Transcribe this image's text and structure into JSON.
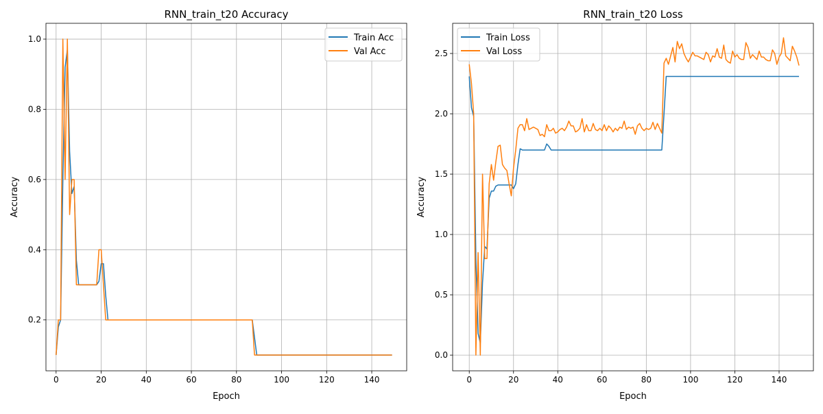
{
  "chart_data": [
    {
      "type": "line",
      "title": "RNN_train_t20 Accuracy",
      "xlabel": "Epoch",
      "ylabel": "Accuracy",
      "xlim": [
        -4.5,
        155.5
      ],
      "ylim": [
        0.055,
        1.045
      ],
      "xticks": [
        0,
        20,
        40,
        60,
        80,
        100,
        120,
        140
      ],
      "yticks": [
        0.2,
        0.4,
        0.6,
        0.8,
        1.0
      ],
      "xtick_labels": [
        "0",
        "20",
        "40",
        "60",
        "80",
        "100",
        "120",
        "140"
      ],
      "ytick_labels": [
        "0.2",
        "0.4",
        "0.6",
        "0.8",
        "1.0"
      ],
      "grid": true,
      "legend_position": "top-right",
      "series": [
        {
          "name": "Train Acc",
          "color": "#1f77b4",
          "points": [
            [
              0,
              0.1
            ],
            [
              1,
              0.18
            ],
            [
              2,
              0.2
            ],
            [
              3,
              0.6
            ],
            [
              4,
              0.92
            ],
            [
              5,
              0.97
            ],
            [
              6,
              0.68
            ],
            [
              7,
              0.56
            ],
            [
              8,
              0.58
            ],
            [
              9,
              0.37
            ],
            [
              10,
              0.3
            ],
            [
              11,
              0.3
            ],
            [
              12,
              0.3
            ],
            [
              13,
              0.3
            ],
            [
              14,
              0.3
            ],
            [
              15,
              0.3
            ],
            [
              16,
              0.3
            ],
            [
              17,
              0.3
            ],
            [
              18,
              0.3
            ],
            [
              19,
              0.31
            ],
            [
              20,
              0.36
            ],
            [
              21,
              0.36
            ],
            [
              22,
              0.27
            ],
            [
              23,
              0.2
            ],
            [
              30,
              0.2
            ],
            [
              40,
              0.2
            ],
            [
              50,
              0.2
            ],
            [
              60,
              0.2
            ],
            [
              70,
              0.2
            ],
            [
              80,
              0.2
            ],
            [
              86,
              0.2
            ],
            [
              87,
              0.2
            ],
            [
              88,
              0.15
            ],
            [
              89,
              0.1
            ],
            [
              100,
              0.1
            ],
            [
              120,
              0.1
            ],
            [
              140,
              0.1
            ],
            [
              149,
              0.1
            ]
          ]
        },
        {
          "name": "Val Acc",
          "color": "#ff7f0e",
          "points": [
            [
              0,
              0.1
            ],
            [
              1,
              0.2
            ],
            [
              2,
              0.2
            ],
            [
              3,
              1.0
            ],
            [
              4,
              0.6
            ],
            [
              5,
              1.0
            ],
            [
              6,
              0.5
            ],
            [
              7,
              0.6
            ],
            [
              8,
              0.6
            ],
            [
              9,
              0.3
            ],
            [
              10,
              0.3
            ],
            [
              11,
              0.3
            ],
            [
              12,
              0.3
            ],
            [
              13,
              0.3
            ],
            [
              14,
              0.3
            ],
            [
              15,
              0.3
            ],
            [
              16,
              0.3
            ],
            [
              17,
              0.3
            ],
            [
              18,
              0.3
            ],
            [
              19,
              0.4
            ],
            [
              20,
              0.4
            ],
            [
              21,
              0.3
            ],
            [
              22,
              0.2
            ],
            [
              23,
              0.2
            ],
            [
              30,
              0.2
            ],
            [
              40,
              0.2
            ],
            [
              50,
              0.2
            ],
            [
              60,
              0.2
            ],
            [
              70,
              0.2
            ],
            [
              80,
              0.2
            ],
            [
              86,
              0.2
            ],
            [
              87,
              0.2
            ],
            [
              88,
              0.1
            ],
            [
              100,
              0.1
            ],
            [
              120,
              0.1
            ],
            [
              140,
              0.1
            ],
            [
              149,
              0.1
            ]
          ]
        }
      ]
    },
    {
      "type": "line",
      "title": "RNN_train_t20 Loss",
      "xlabel": "Epoch",
      "ylabel": "Accuracy",
      "xlim": [
        -7.5,
        155.5
      ],
      "ylim": [
        -0.13,
        2.75
      ],
      "xticks": [
        0,
        20,
        40,
        60,
        80,
        100,
        120,
        140
      ],
      "yticks": [
        0.0,
        0.5,
        1.0,
        1.5,
        2.0,
        2.5
      ],
      "xtick_labels": [
        "0",
        "20",
        "40",
        "60",
        "80",
        "100",
        "120",
        "140"
      ],
      "ytick_labels": [
        "0.0",
        "0.5",
        "1.0",
        "1.5",
        "2.0",
        "2.5"
      ],
      "grid": true,
      "legend_position": "top-left",
      "series": [
        {
          "name": "Train Loss",
          "color": "#1f77b4",
          "points": [
            [
              0,
              2.31
            ],
            [
              1,
              2.05
            ],
            [
              2,
              1.98
            ],
            [
              3,
              0.8
            ],
            [
              4,
              0.18
            ],
            [
              5,
              0.1
            ],
            [
              6,
              0.6
            ],
            [
              7,
              0.9
            ],
            [
              8,
              0.88
            ],
            [
              9,
              1.3
            ],
            [
              10,
              1.36
            ],
            [
              11,
              1.36
            ],
            [
              12,
              1.4
            ],
            [
              13,
              1.41
            ],
            [
              14,
              1.41
            ],
            [
              15,
              1.41
            ],
            [
              16,
              1.41
            ],
            [
              17,
              1.41
            ],
            [
              18,
              1.41
            ],
            [
              19,
              1.41
            ],
            [
              20,
              1.38
            ],
            [
              21,
              1.42
            ],
            [
              22,
              1.58
            ],
            [
              23,
              1.71
            ],
            [
              24,
              1.7
            ],
            [
              30,
              1.7
            ],
            [
              34,
              1.7
            ],
            [
              35,
              1.75
            ],
            [
              36,
              1.73
            ],
            [
              37,
              1.7
            ],
            [
              40,
              1.7
            ],
            [
              50,
              1.7
            ],
            [
              60,
              1.7
            ],
            [
              70,
              1.7
            ],
            [
              80,
              1.7
            ],
            [
              87,
              1.7
            ],
            [
              88,
              2.0
            ],
            [
              89,
              2.31
            ],
            [
              100,
              2.31
            ],
            [
              120,
              2.31
            ],
            [
              140,
              2.31
            ],
            [
              149,
              2.31
            ]
          ]
        },
        {
          "name": "Val Loss",
          "color": "#ff7f0e",
          "points": [
            [
              0,
              2.41
            ],
            [
              1,
              2.25
            ],
            [
              2,
              2.0
            ],
            [
              3,
              0.0
            ],
            [
              4,
              0.85
            ],
            [
              5,
              0.0
            ],
            [
              6,
              1.5
            ],
            [
              7,
              0.8
            ],
            [
              8,
              0.8
            ],
            [
              9,
              1.42
            ],
            [
              10,
              1.58
            ],
            [
              11,
              1.45
            ],
            [
              12,
              1.6
            ],
            [
              13,
              1.73
            ],
            [
              14,
              1.74
            ],
            [
              15,
              1.58
            ],
            [
              16,
              1.55
            ],
            [
              17,
              1.53
            ],
            [
              18,
              1.42
            ],
            [
              19,
              1.32
            ],
            [
              20,
              1.55
            ],
            [
              21,
              1.7
            ],
            [
              22,
              1.88
            ],
            [
              23,
              1.91
            ],
            [
              24,
              1.91
            ],
            [
              25,
              1.86
            ],
            [
              26,
              1.96
            ],
            [
              27,
              1.87
            ],
            [
              28,
              1.88
            ],
            [
              29,
              1.89
            ],
            [
              30,
              1.88
            ],
            [
              31,
              1.87
            ],
            [
              32,
              1.82
            ],
            [
              33,
              1.83
            ],
            [
              34,
              1.81
            ],
            [
              35,
              1.91
            ],
            [
              36,
              1.86
            ],
            [
              37,
              1.86
            ],
            [
              38,
              1.88
            ],
            [
              39,
              1.84
            ],
            [
              40,
              1.85
            ],
            [
              41,
              1.87
            ],
            [
              42,
              1.88
            ],
            [
              43,
              1.86
            ],
            [
              44,
              1.89
            ],
            [
              45,
              1.94
            ],
            [
              46,
              1.9
            ],
            [
              47,
              1.9
            ],
            [
              48,
              1.85
            ],
            [
              49,
              1.86
            ],
            [
              50,
              1.88
            ],
            [
              51,
              1.96
            ],
            [
              52,
              1.85
            ],
            [
              53,
              1.91
            ],
            [
              54,
              1.86
            ],
            [
              55,
              1.86
            ],
            [
              56,
              1.92
            ],
            [
              57,
              1.87
            ],
            [
              58,
              1.86
            ],
            [
              59,
              1.88
            ],
            [
              60,
              1.86
            ],
            [
              61,
              1.91
            ],
            [
              62,
              1.86
            ],
            [
              63,
              1.9
            ],
            [
              64,
              1.88
            ],
            [
              65,
              1.85
            ],
            [
              66,
              1.88
            ],
            [
              67,
              1.86
            ],
            [
              68,
              1.89
            ],
            [
              69,
              1.88
            ],
            [
              70,
              1.94
            ],
            [
              71,
              1.87
            ],
            [
              72,
              1.89
            ],
            [
              73,
              1.88
            ],
            [
              74,
              1.89
            ],
            [
              75,
              1.83
            ],
            [
              76,
              1.9
            ],
            [
              77,
              1.92
            ],
            [
              78,
              1.88
            ],
            [
              79,
              1.86
            ],
            [
              80,
              1.88
            ],
            [
              81,
              1.87
            ],
            [
              82,
              1.88
            ],
            [
              83,
              1.93
            ],
            [
              84,
              1.87
            ],
            [
              85,
              1.92
            ],
            [
              86,
              1.88
            ],
            [
              87,
              1.84
            ],
            [
              88,
              2.42
            ],
            [
              89,
              2.46
            ],
            [
              90,
              2.41
            ],
            [
              91,
              2.48
            ],
            [
              92,
              2.55
            ],
            [
              93,
              2.43
            ],
            [
              94,
              2.6
            ],
            [
              95,
              2.54
            ],
            [
              96,
              2.58
            ],
            [
              97,
              2.5
            ],
            [
              98,
              2.46
            ],
            [
              99,
              2.43
            ],
            [
              100,
              2.47
            ],
            [
              101,
              2.51
            ],
            [
              102,
              2.48
            ],
            [
              103,
              2.48
            ],
            [
              104,
              2.47
            ],
            [
              105,
              2.46
            ],
            [
              106,
              2.45
            ],
            [
              107,
              2.51
            ],
            [
              108,
              2.49
            ],
            [
              109,
              2.43
            ],
            [
              110,
              2.48
            ],
            [
              111,
              2.47
            ],
            [
              112,
              2.54
            ],
            [
              113,
              2.47
            ],
            [
              114,
              2.46
            ],
            [
              115,
              2.57
            ],
            [
              116,
              2.45
            ],
            [
              117,
              2.43
            ],
            [
              118,
              2.42
            ],
            [
              119,
              2.52
            ],
            [
              120,
              2.47
            ],
            [
              121,
              2.49
            ],
            [
              122,
              2.46
            ],
            [
              123,
              2.45
            ],
            [
              124,
              2.45
            ],
            [
              125,
              2.59
            ],
            [
              126,
              2.55
            ],
            [
              127,
              2.46
            ],
            [
              128,
              2.49
            ],
            [
              129,
              2.47
            ],
            [
              130,
              2.45
            ],
            [
              131,
              2.52
            ],
            [
              132,
              2.47
            ],
            [
              133,
              2.47
            ],
            [
              134,
              2.45
            ],
            [
              135,
              2.44
            ],
            [
              136,
              2.44
            ],
            [
              137,
              2.53
            ],
            [
              138,
              2.5
            ],
            [
              139,
              2.41
            ],
            [
              140,
              2.47
            ],
            [
              141,
              2.5
            ],
            [
              142,
              2.63
            ],
            [
              143,
              2.48
            ],
            [
              144,
              2.46
            ],
            [
              145,
              2.44
            ],
            [
              146,
              2.56
            ],
            [
              147,
              2.52
            ],
            [
              148,
              2.47
            ],
            [
              149,
              2.4
            ]
          ]
        }
      ]
    }
  ]
}
